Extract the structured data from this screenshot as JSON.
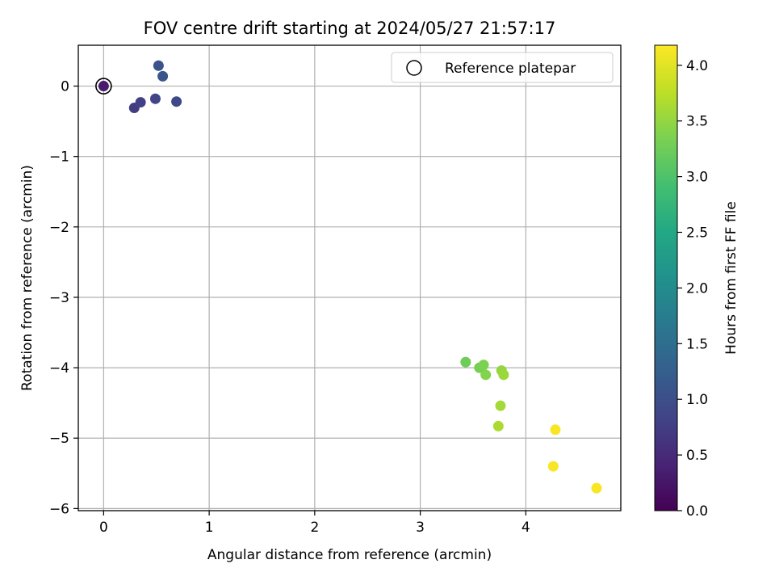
{
  "chart_data": {
    "type": "scatter",
    "title": "FOV centre drift starting at 2024/05/27 21:57:17",
    "xlabel": "Angular distance from reference (arcmin)",
    "ylabel": "Rotation from reference (arcmin)",
    "xlim": [
      -0.24,
      4.9
    ],
    "ylim": [
      -6.03,
      0.58
    ],
    "xticks": [
      0,
      1,
      2,
      3,
      4
    ],
    "yticks": [
      0,
      -1,
      -2,
      -3,
      -4,
      -5,
      -6
    ],
    "xtick_labels": [
      "0",
      "1",
      "2",
      "3",
      "4"
    ],
    "ytick_labels": [
      "0",
      "−1",
      "−2",
      "−3",
      "−4",
      "−5",
      "−6"
    ],
    "grid": true,
    "legend": {
      "placement": "top-right",
      "label": "Reference platepar"
    },
    "colorbar": {
      "label": "Hours from first FF file",
      "colormap": "viridis",
      "range": [
        0.0,
        4.18
      ],
      "ticks": [
        0.0,
        0.5,
        1.0,
        1.5,
        2.0,
        2.5,
        3.0,
        3.5,
        4.0
      ],
      "tick_labels": [
        "0.0",
        "0.5",
        "1.0",
        "1.5",
        "2.0",
        "2.5",
        "3.0",
        "3.5",
        "4.0"
      ]
    },
    "reference_point": {
      "x": 0.0,
      "y": 0.0
    },
    "points": [
      {
        "x": 0.0,
        "y": 0.0,
        "hours": 0.3
      },
      {
        "x": 0.29,
        "y": -0.31,
        "hours": 0.75
      },
      {
        "x": 0.35,
        "y": -0.23,
        "hours": 0.8
      },
      {
        "x": 0.49,
        "y": -0.18,
        "hours": 0.85
      },
      {
        "x": 0.69,
        "y": -0.22,
        "hours": 0.9
      },
      {
        "x": 0.52,
        "y": 0.29,
        "hours": 1.05
      },
      {
        "x": 0.56,
        "y": 0.14,
        "hours": 1.1
      },
      {
        "x": 3.43,
        "y": -3.92,
        "hours": 3.25
      },
      {
        "x": 3.56,
        "y": -4.0,
        "hours": 3.3
      },
      {
        "x": 3.6,
        "y": -3.96,
        "hours": 3.35
      },
      {
        "x": 3.62,
        "y": -4.1,
        "hours": 3.4
      },
      {
        "x": 3.77,
        "y": -4.04,
        "hours": 3.5
      },
      {
        "x": 3.79,
        "y": -4.1,
        "hours": 3.55
      },
      {
        "x": 3.76,
        "y": -4.54,
        "hours": 3.6
      },
      {
        "x": 3.74,
        "y": -4.83,
        "hours": 3.65
      },
      {
        "x": 4.28,
        "y": -4.88,
        "hours": 4.15
      },
      {
        "x": 4.26,
        "y": -5.4,
        "hours": 4.15
      },
      {
        "x": 4.67,
        "y": -5.71,
        "hours": 4.15
      }
    ]
  }
}
